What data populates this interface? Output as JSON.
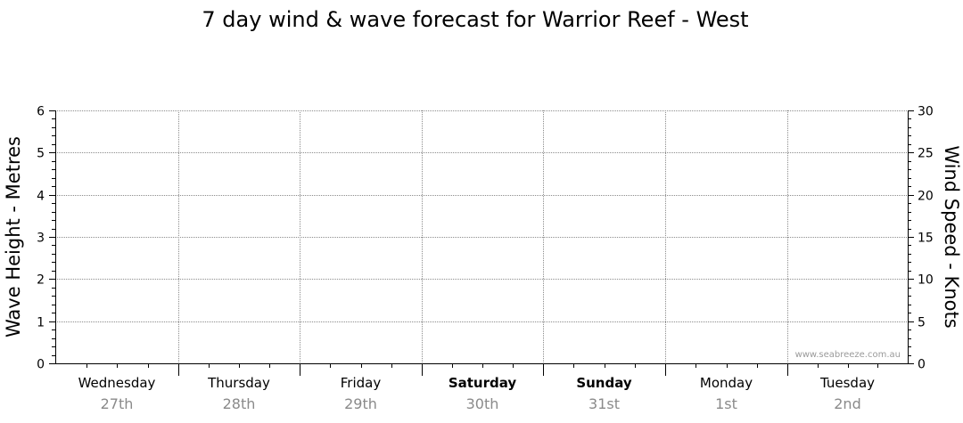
{
  "chart_data": {
    "type": "line",
    "title": "7 day wind & wave forecast for Warrior Reef - West",
    "ylabel_left": "Wave Height - Metres",
    "ylabel_right": "Wind Speed - Knots",
    "ylim_left": [
      0,
      6
    ],
    "ylim_right": [
      0,
      30
    ],
    "yticks_left": [
      "0",
      "1",
      "2",
      "3",
      "4",
      "5",
      "6"
    ],
    "yticks_right": [
      "0",
      "5",
      "10",
      "15",
      "20",
      "25",
      "30"
    ],
    "grid": true,
    "days": [
      {
        "name": "Wednesday",
        "date": "27th",
        "bold": false
      },
      {
        "name": "Thursday",
        "date": "28th",
        "bold": false
      },
      {
        "name": "Friday",
        "date": "29th",
        "bold": false
      },
      {
        "name": "Saturday",
        "date": "30th",
        "bold": true
      },
      {
        "name": "Sunday",
        "date": "31st",
        "bold": true
      },
      {
        "name": "Monday",
        "date": "1st",
        "bold": false
      },
      {
        "name": "Tuesday",
        "date": "2nd",
        "bold": false
      }
    ],
    "series": [],
    "watermark": "www.seabreeze.com.au"
  }
}
